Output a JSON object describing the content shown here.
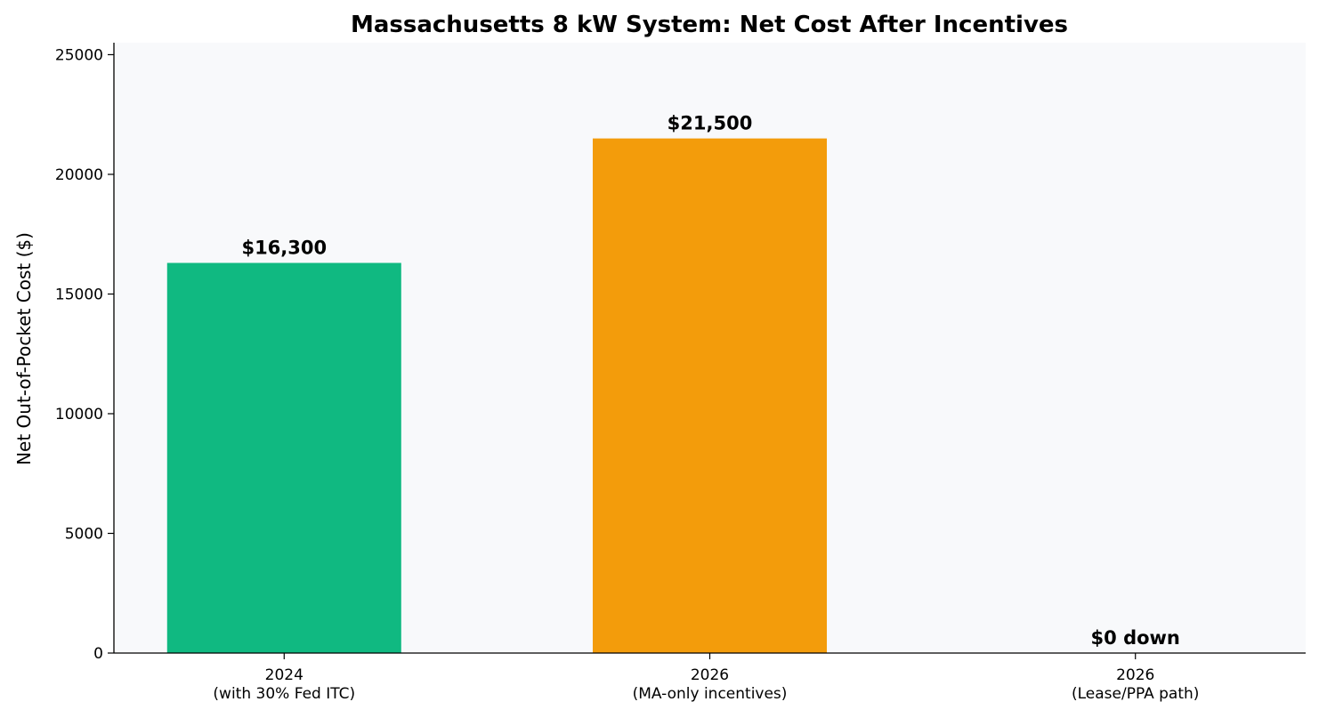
{
  "chart_data": {
    "type": "bar",
    "title": "Massachusetts 8 kW System: Net Cost After Incentives",
    "xlabel": "",
    "ylabel": "Net Out-of-Pocket Cost ($)",
    "ylim": [
      0,
      25500
    ],
    "yticks": [
      0,
      5000,
      10000,
      15000,
      20000,
      25000
    ],
    "ytick_labels": [
      "0",
      "5000",
      "10000",
      "15000",
      "20000",
      "25000"
    ],
    "categories": [
      [
        "2024",
        "(with 30% Fed ITC)"
      ],
      [
        "2026",
        "(MA-only incentives)"
      ],
      [
        "2026",
        "(Lease/PPA path)"
      ]
    ],
    "values": [
      16300,
      21500,
      0
    ],
    "data_labels": [
      "$16,300",
      "$21,500",
      "$0 down"
    ],
    "colors": [
      "#10b981",
      "#f39c0b",
      "#3b82f6"
    ],
    "plot_background": "#f8f9fb",
    "grid": false,
    "legend": "none"
  }
}
